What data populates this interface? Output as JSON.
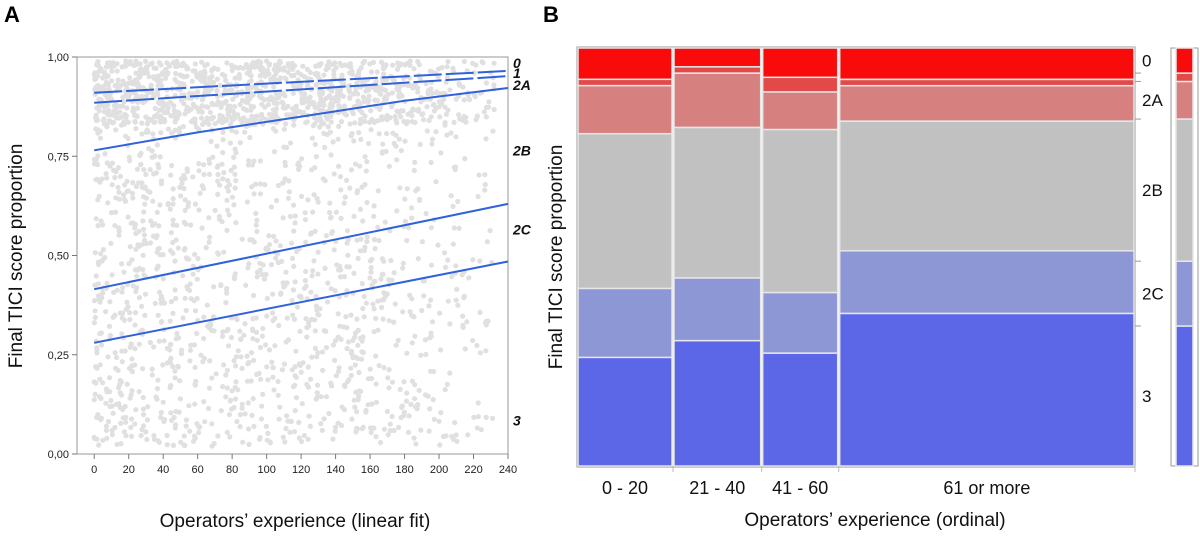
{
  "chart_data": [
    {
      "panel": "A",
      "type": "scatter",
      "title": "",
      "xlabel": "Operators’ experience (linear fit)",
      "ylabel": "Final TICI score proportion",
      "xlim": [
        -10,
        240
      ],
      "ylim": [
        0,
        1
      ],
      "x_ticks": [
        0,
        20,
        40,
        60,
        80,
        100,
        120,
        140,
        160,
        180,
        200,
        220,
        240
      ],
      "y_ticks": [
        0,
        0.25,
        0.5,
        0.75,
        1
      ],
      "y_tick_labels": [
        "0,00",
        "0,25",
        "0,50",
        "0,75",
        "1,00"
      ],
      "scatter_color": "#e0e0e0",
      "line_color": "#2f62dc",
      "fit_lines": [
        {
          "boundary": "0 | 1",
          "x": [
            0,
            240
          ],
          "y": [
            0.91,
            0.965
          ]
        },
        {
          "boundary": "1 | 2A",
          "x": [
            0,
            240
          ],
          "y": [
            0.885,
            0.952
          ]
        },
        {
          "boundary": "2A | 2B",
          "x": [
            0,
            60,
            120,
            180,
            240
          ],
          "y": [
            0.765,
            0.81,
            0.85,
            0.89,
            0.922
          ]
        },
        {
          "boundary": "2B | 2C",
          "x": [
            0,
            240
          ],
          "y": [
            0.415,
            0.63
          ]
        },
        {
          "boundary": "2C | 3",
          "x": [
            0,
            240
          ],
          "y": [
            0.28,
            0.485
          ]
        }
      ],
      "grade_labels": [
        {
          "text": "0",
          "y": 0.985
        },
        {
          "text": "1",
          "y": 0.96
        },
        {
          "text": "2A",
          "y": 0.93
        },
        {
          "text": "2B",
          "y": 0.765
        },
        {
          "text": "2C",
          "y": 0.565
        },
        {
          "text": "3",
          "y": 0.085
        }
      ]
    },
    {
      "panel": "B",
      "type": "bar",
      "subtype": "mosaic",
      "xlabel": "Operators’ experience (ordinal)",
      "ylabel": "Final TICI score proportion",
      "categories": [
        "0 - 20",
        "21 - 40",
        "41 - 60",
        "61 or more"
      ],
      "category_widths": [
        0.172,
        0.159,
        0.138,
        0.531
      ],
      "grades": [
        "3",
        "2C",
        "2B",
        "2A",
        "1",
        "0"
      ],
      "series": [
        {
          "name": "3",
          "color": "#5c67e8",
          "values": [
            0.26,
            0.3,
            0.27,
            0.365
          ]
        },
        {
          "name": "2C",
          "color": "#8d97d6",
          "values": [
            0.165,
            0.15,
            0.145,
            0.15
          ]
        },
        {
          "name": "2B",
          "color": "#c1c1c1",
          "values": [
            0.37,
            0.36,
            0.39,
            0.31
          ]
        },
        {
          "name": "2A",
          "color": "#d78080",
          "values": [
            0.115,
            0.13,
            0.09,
            0.085
          ]
        },
        {
          "name": "1",
          "color": "#e24a4a",
          "values": [
            0.015,
            0.015,
            0.035,
            0.015
          ]
        },
        {
          "name": "0",
          "color": "#fa0b0b",
          "values": [
            0.075,
            0.045,
            0.07,
            0.075
          ]
        }
      ],
      "overall": [
        0.335,
        0.155,
        0.34,
        0.09,
        0.02,
        0.06
      ],
      "side_labels": [
        "0",
        "2A",
        "2B",
        "2C",
        "3"
      ]
    }
  ],
  "panels": {
    "a": "A",
    "b": "B"
  }
}
